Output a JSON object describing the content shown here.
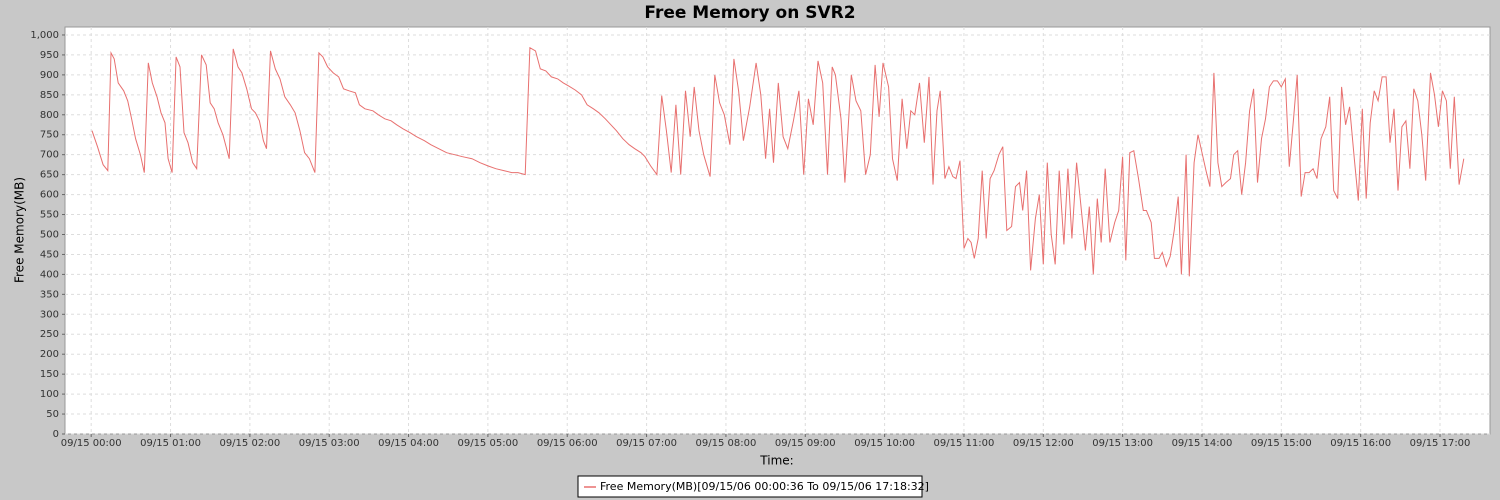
{
  "chart_data": {
    "type": "line",
    "title": "Free Memory on SVR2",
    "x_label": "Time:",
    "y_label": "Free Memory(MB)",
    "xlim": [
      -0.33,
      17.63
    ],
    "ylim": [
      0,
      1020
    ],
    "grid": true,
    "xticks": [
      {
        "value": 0,
        "label": "09/15 00:00"
      },
      {
        "value": 1,
        "label": "09/15 01:00"
      },
      {
        "value": 2,
        "label": "09/15 02:00"
      },
      {
        "value": 3,
        "label": "09/15 03:00"
      },
      {
        "value": 4,
        "label": "09/15 04:00"
      },
      {
        "value": 5,
        "label": "09/15 05:00"
      },
      {
        "value": 6,
        "label": "09/15 06:00"
      },
      {
        "value": 7,
        "label": "09/15 07:00"
      },
      {
        "value": 8,
        "label": "09/15 08:00"
      },
      {
        "value": 9,
        "label": "09/15 09:00"
      },
      {
        "value": 10,
        "label": "09/15 10:00"
      },
      {
        "value": 11,
        "label": "09/15 11:00"
      },
      {
        "value": 12,
        "label": "09/15 12:00"
      },
      {
        "value": 13,
        "label": "09/15 13:00"
      },
      {
        "value": 14,
        "label": "09/15 14:00"
      },
      {
        "value": 15,
        "label": "09/15 15:00"
      },
      {
        "value": 16,
        "label": "09/15 16:00"
      },
      {
        "value": 17,
        "label": "09/15 17:00"
      }
    ],
    "yticks": [
      0,
      50,
      100,
      150,
      200,
      250,
      300,
      350,
      400,
      450,
      500,
      550,
      600,
      650,
      700,
      750,
      800,
      850,
      900,
      950,
      {
        "value": 1000,
        "label": "1,000"
      }
    ],
    "x": [
      0.01,
      0.08,
      0.15,
      0.21,
      0.25,
      0.29,
      0.34,
      0.41,
      0.46,
      0.51,
      0.56,
      0.62,
      0.67,
      0.72,
      0.77,
      0.83,
      0.88,
      0.93,
      0.97,
      1.02,
      1.07,
      1.12,
      1.17,
      1.22,
      1.28,
      1.33,
      1.39,
      1.45,
      1.5,
      1.55,
      1.6,
      1.66,
      1.7,
      1.74,
      1.79,
      1.85,
      1.9,
      1.96,
      2.02,
      2.07,
      2.12,
      2.17,
      2.21,
      2.26,
      2.32,
      2.38,
      2.44,
      2.51,
      2.57,
      2.63,
      2.69,
      2.75,
      2.82,
      2.87,
      2.92,
      2.98,
      3.05,
      3.12,
      3.18,
      3.25,
      3.33,
      3.38,
      3.45,
      3.55,
      3.62,
      3.7,
      3.78,
      3.85,
      3.93,
      4.02,
      4.1,
      4.2,
      4.28,
      4.38,
      4.48,
      4.58,
      4.68,
      4.8,
      4.9,
      5.0,
      5.1,
      5.2,
      5.3,
      5.38,
      5.47,
      5.53,
      5.6,
      5.66,
      5.73,
      5.8,
      5.88,
      5.95,
      6.02,
      6.1,
      6.18,
      6.25,
      6.33,
      6.4,
      6.48,
      6.55,
      6.62,
      6.7,
      6.78,
      6.85,
      6.93,
      6.98,
      7.05,
      7.13,
      7.19,
      7.25,
      7.31,
      7.37,
      7.43,
      7.49,
      7.55,
      7.6,
      7.66,
      7.72,
      7.8,
      7.86,
      7.92,
      7.98,
      8.05,
      8.1,
      8.16,
      8.22,
      8.3,
      8.38,
      8.44,
      8.5,
      8.55,
      8.6,
      8.66,
      8.72,
      8.78,
      8.85,
      8.92,
      8.98,
      9.04,
      9.1,
      9.16,
      9.22,
      9.28,
      9.34,
      9.38,
      9.45,
      9.5,
      9.58,
      9.64,
      9.7,
      9.76,
      9.82,
      9.88,
      9.93,
      9.98,
      10.05,
      10.1,
      10.16,
      10.22,
      10.28,
      10.33,
      10.38,
      10.44,
      10.5,
      10.56,
      10.61,
      10.66,
      10.7,
      10.76,
      10.81,
      10.86,
      10.9,
      10.95,
      11.0,
      11.05,
      11.09,
      11.13,
      11.18,
      11.23,
      11.28,
      11.33,
      11.38,
      11.44,
      11.49,
      11.54,
      11.6,
      11.65,
      11.7,
      11.74,
      11.79,
      11.84,
      11.9,
      11.95,
      12.0,
      12.05,
      12.1,
      12.15,
      12.2,
      12.26,
      12.31,
      12.36,
      12.42,
      12.47,
      12.53,
      12.58,
      12.63,
      12.68,
      12.73,
      12.78,
      12.84,
      12.9,
      12.95,
      13.0,
      13.04,
      13.09,
      13.14,
      13.2,
      13.26,
      13.3,
      13.36,
      13.4,
      13.46,
      13.5,
      13.55,
      13.6,
      13.65,
      13.7,
      13.74,
      13.8,
      13.84,
      13.9,
      13.95,
      14.0,
      14.05,
      14.1,
      14.15,
      14.2,
      14.25,
      14.3,
      14.36,
      14.4,
      14.45,
      14.5,
      14.55,
      14.6,
      14.65,
      14.7,
      14.75,
      14.8,
      14.85,
      14.9,
      14.95,
      15.0,
      15.05,
      15.1,
      15.15,
      15.2,
      15.25,
      15.3,
      15.35,
      15.4,
      15.45,
      15.5,
      15.56,
      15.61,
      15.66,
      15.71,
      15.76,
      15.81,
      15.86,
      15.92,
      15.97,
      16.02,
      16.07,
      16.12,
      16.17,
      16.22,
      16.27,
      16.32,
      16.37,
      16.42,
      16.47,
      16.52,
      16.57,
      16.62,
      16.67,
      16.72,
      16.77,
      16.82,
      16.88,
      16.93,
      16.98,
      17.03,
      17.08,
      17.13,
      17.18,
      17.24,
      17.3
    ],
    "series": [
      {
        "name": "Free Memory(MB)[09/15/06 00:00:36 To 09/15/06 17:18:32]",
        "color": "#e8706f",
        "values": [
          760,
          720,
          675,
          660,
          955,
          940,
          880,
          860,
          835,
          790,
          740,
          700,
          655,
          930,
          880,
          845,
          805,
          780,
          690,
          655,
          945,
          920,
          755,
          730,
          680,
          665,
          950,
          925,
          830,
          815,
          780,
          750,
          720,
          690,
          965,
          920,
          905,
          865,
          815,
          805,
          785,
          735,
          715,
          960,
          915,
          890,
          845,
          825,
          805,
          760,
          705,
          690,
          655,
          955,
          945,
          920,
          905,
          895,
          865,
          860,
          855,
          825,
          815,
          810,
          800,
          790,
          785,
          775,
          765,
          755,
          745,
          735,
          725,
          715,
          705,
          700,
          695,
          690,
          680,
          672,
          665,
          660,
          655,
          655,
          650,
          968,
          960,
          915,
          910,
          895,
          890,
          880,
          872,
          862,
          850,
          825,
          815,
          805,
          790,
          775,
          760,
          740,
          725,
          715,
          705,
          695,
          672,
          650,
          848,
          760,
          655,
          825,
          650,
          860,
          745,
          870,
          760,
          700,
          645,
          900,
          830,
          800,
          725,
          940,
          860,
          735,
          820,
          930,
          850,
          690,
          815,
          680,
          880,
          745,
          715,
          785,
          860,
          650,
          840,
          775,
          935,
          880,
          650,
          920,
          900,
          790,
          630,
          900,
          835,
          810,
          650,
          700,
          925,
          795,
          930,
          870,
          690,
          635,
          840,
          715,
          810,
          800,
          880,
          730,
          895,
          625,
          810,
          860,
          640,
          670,
          645,
          640,
          685,
          465,
          490,
          480,
          440,
          490,
          660,
          490,
          640,
          660,
          700,
          720,
          510,
          520,
          620,
          630,
          560,
          660,
          410,
          540,
          600,
          425,
          680,
          500,
          425,
          660,
          475,
          665,
          490,
          680,
          580,
          460,
          570,
          400,
          590,
          480,
          665,
          480,
          530,
          560,
          695,
          435,
          705,
          710,
          640,
          560,
          560,
          530,
          440,
          440,
          455,
          420,
          445,
          510,
          595,
          400,
          700,
          395,
          680,
          750,
          705,
          660,
          620,
          905,
          680,
          620,
          630,
          640,
          700,
          710,
          600,
          680,
          810,
          865,
          630,
          740,
          790,
          870,
          885,
          885,
          870,
          890,
          670,
          780,
          900,
          595,
          655,
          655,
          665,
          640,
          740,
          770,
          845,
          610,
          590,
          870,
          775,
          820,
          690,
          585,
          815,
          590,
          780,
          860,
          835,
          895,
          895,
          730,
          815,
          610,
          770,
          785,
          665,
          865,
          835,
          750,
          635,
          905,
          850,
          770,
          860,
          835,
          665,
          845,
          625,
          690
        ]
      }
    ]
  }
}
